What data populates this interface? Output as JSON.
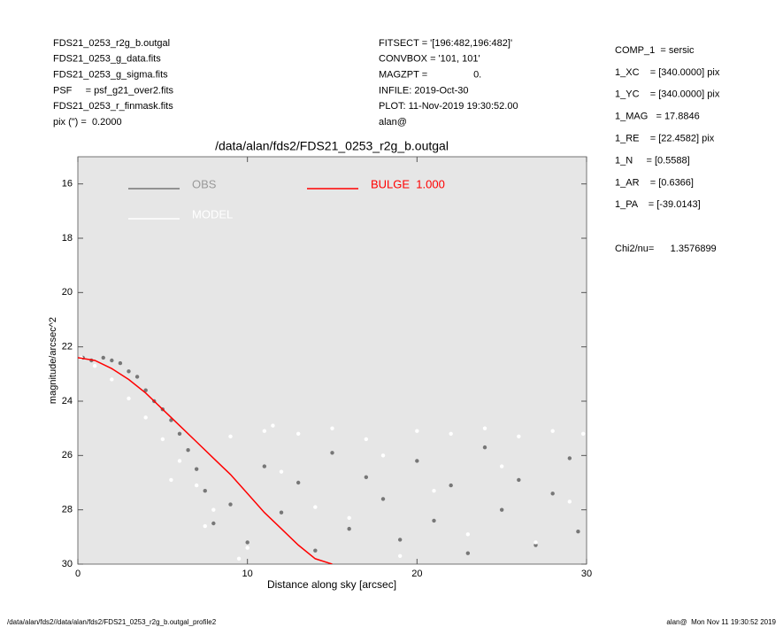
{
  "header": {
    "left": [
      "FDS21_0253_r2g_b.outgal",
      "FDS21_0253_g_data.fits",
      "FDS21_0253_g_sigma.fits",
      "PSF     = psf_g21_over2.fits",
      "FDS21_0253_r_finmask.fits",
      "pix (\") =  0.2000"
    ],
    "middle": [
      "FITSECT = '[196:482,196:482]'",
      "CONVBOX = '101, 101'",
      "MAGZPT =                 0.",
      "INFILE: 2019-Oct-30",
      "PLOT: 11-Nov-2019 19:30:52.00",
      "alan@"
    ],
    "right": [
      "COMP_1  = sersic",
      "1_XC    = [340.0000] pix",
      "1_YC    = [340.0000] pix",
      "1_MAG   = 17.8846",
      "1_RE    = [22.4582] pix",
      "1_N     = [0.5588]",
      "1_AR    = [0.6366]",
      "1_PA    = [-39.0143]"
    ],
    "fit_stat": "Chi2/nu=      1.3576899"
  },
  "footer": {
    "left": "/data/alan/fds2//data/alan/fds2/FDS21_0253_r2g_b.outgal_profile2",
    "right": "alan@  Mon Nov 11 19:30:52 2019"
  },
  "chart_data": {
    "type": "scatter",
    "title": "/data/alan/fds2/FDS21_0253_r2g_b.outgal",
    "xlabel": "Distance along sky [arcsec]",
    "ylabel": "magnitude/arcsec^2",
    "xlim": [
      0,
      30
    ],
    "ylim": [
      30,
      15
    ],
    "xticks": [
      0,
      10,
      20,
      30
    ],
    "yticks": [
      16,
      18,
      20,
      22,
      24,
      26,
      28,
      30
    ],
    "series": [
      {
        "name": "OBS",
        "color": "#777777",
        "mode": "points",
        "x": [
          0.3,
          0.8,
          1.5,
          2.0,
          2.5,
          3.0,
          3.5,
          4.0,
          4.5,
          5.0,
          5.5,
          6.0,
          6.5,
          7.0,
          7.5,
          8,
          9,
          10,
          11,
          12,
          13,
          14,
          15,
          16,
          17,
          18,
          19,
          20,
          21,
          22,
          23,
          24,
          25,
          26,
          27,
          28,
          29,
          29.5
        ],
        "values": [
          22.4,
          22.5,
          22.4,
          22.5,
          22.6,
          22.9,
          23.1,
          23.6,
          24.0,
          24.3,
          24.7,
          25.2,
          25.8,
          26.5,
          27.3,
          28.5,
          27.8,
          29.2,
          26.4,
          28.1,
          27.0,
          29.5,
          25.9,
          28.7,
          26.8,
          27.6,
          29.1,
          26.2,
          28.4,
          27.1,
          29.6,
          25.7,
          28.0,
          26.9,
          29.3,
          27.4,
          26.1,
          28.8
        ]
      },
      {
        "name": "MODEL",
        "color": "#ffffff",
        "mode": "points",
        "x": [
          0.2,
          1,
          2,
          3,
          4,
          5,
          6,
          7,
          8,
          9,
          10,
          11,
          12,
          13,
          14,
          15,
          16,
          17,
          18,
          19,
          20,
          21,
          22,
          23,
          24,
          25,
          26,
          27,
          28,
          29,
          29.8,
          5.5,
          7.5,
          9.5,
          11.5
        ],
        "values": [
          22.4,
          22.7,
          23.2,
          23.9,
          24.6,
          25.4,
          26.2,
          27.1,
          28.0,
          25.3,
          29.4,
          25.1,
          26.6,
          25.2,
          27.9,
          25.0,
          28.3,
          25.4,
          26.0,
          29.7,
          25.1,
          27.3,
          25.2,
          28.9,
          25.0,
          26.4,
          25.3,
          29.2,
          25.1,
          27.7,
          25.2,
          26.9,
          28.6,
          29.8,
          24.9
        ]
      },
      {
        "name": "BULGE  1.000",
        "color": "#ff0000",
        "mode": "line",
        "x": [
          0,
          1,
          2,
          3,
          4,
          5,
          6,
          7,
          8,
          9,
          10,
          11,
          12,
          13,
          14,
          15
        ],
        "values": [
          22.4,
          22.5,
          22.8,
          23.2,
          23.7,
          24.3,
          24.9,
          25.5,
          26.1,
          26.7,
          27.4,
          28.1,
          28.7,
          29.3,
          29.8,
          30
        ]
      }
    ]
  }
}
